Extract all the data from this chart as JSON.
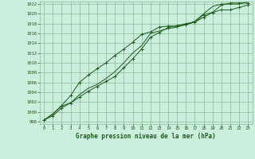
{
  "title": "Graphe pression niveau de la mer (hPa)",
  "bg_color": "#cceedd",
  "grid_color": "#88bb99",
  "line_color": "#1a5c1a",
  "xlim": [
    -0.5,
    23.5
  ],
  "ylim": [
    997.5,
    1022.5
  ],
  "xticks": [
    0,
    1,
    2,
    3,
    4,
    5,
    6,
    7,
    8,
    9,
    10,
    11,
    12,
    13,
    14,
    15,
    16,
    17,
    18,
    19,
    20,
    21,
    22,
    23
  ],
  "yticks": [
    998,
    1000,
    1002,
    1004,
    1006,
    1008,
    1010,
    1012,
    1014,
    1016,
    1018,
    1020,
    1022
  ],
  "line1_x": [
    0,
    1,
    2,
    3,
    4,
    5,
    6,
    7,
    8,
    9,
    10,
    11,
    12,
    13,
    14,
    15,
    16,
    17,
    18,
    19,
    20,
    21,
    22,
    23
  ],
  "line1_y": [
    998.3,
    999.2,
    1000.8,
    1001.8,
    1003.0,
    1004.2,
    1005.2,
    1006.2,
    1007.2,
    1009.0,
    1010.8,
    1012.8,
    1015.2,
    1016.2,
    1017.2,
    1017.6,
    1018.0,
    1018.3,
    1019.3,
    1020.3,
    1021.8,
    1022.2,
    1022.2,
    1022.2
  ],
  "line2_x": [
    0,
    1,
    2,
    3,
    4,
    5,
    6,
    7,
    8,
    9,
    10,
    11,
    12,
    13,
    14,
    15,
    16,
    17,
    18,
    19,
    20,
    21,
    22,
    23
  ],
  "line2_y": [
    998.3,
    999.5,
    1001.3,
    1003.3,
    1006.0,
    1007.5,
    1008.8,
    1010.0,
    1011.5,
    1012.8,
    1014.2,
    1015.8,
    1016.3,
    1017.3,
    1017.5,
    1017.5,
    1017.8,
    1018.3,
    1019.8,
    1020.3,
    1020.8,
    1020.8,
    1021.3,
    1021.8
  ],
  "line3_x": [
    0,
    1,
    2,
    3,
    4,
    5,
    6,
    7,
    8,
    9,
    10,
    11,
    12,
    13,
    14,
    15,
    16,
    17,
    18,
    19,
    20,
    21,
    22,
    23
  ],
  "line3_y": [
    998.3,
    999.6,
    1001.2,
    1001.8,
    1003.5,
    1004.8,
    1005.6,
    1006.8,
    1008.2,
    1010.0,
    1012.0,
    1013.5,
    1016.0,
    1016.5,
    1017.0,
    1017.3,
    1017.8,
    1018.5,
    1020.0,
    1021.5,
    1022.0,
    1022.0,
    1022.0,
    1022.5
  ]
}
